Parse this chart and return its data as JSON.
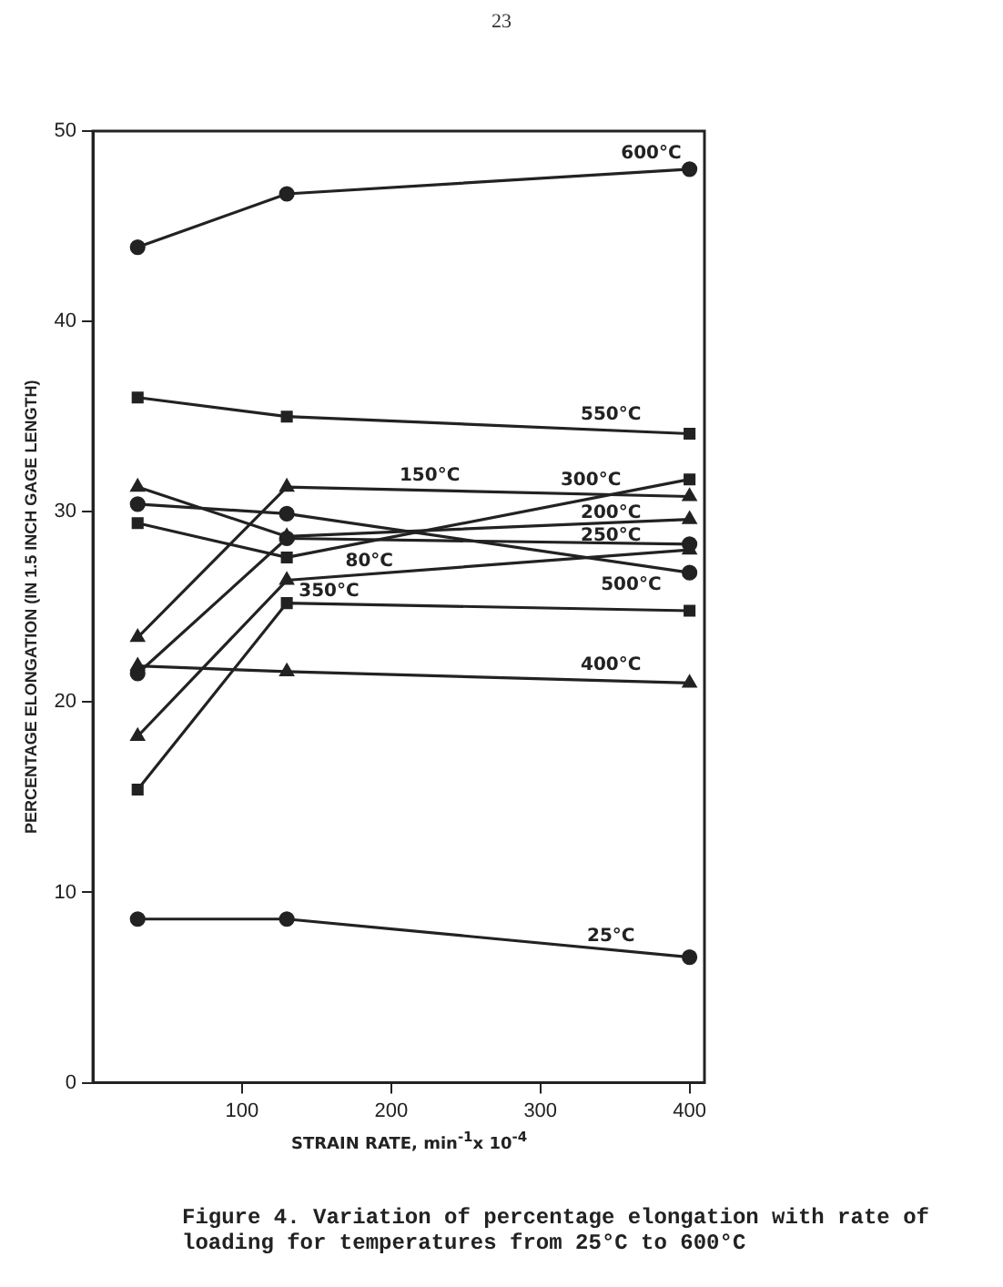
{
  "chart_data": {
    "type": "line",
    "title": "Figure 4.  Variation of percentage elongation with rate of loading for temperatures from 25°C to 600°C",
    "xlabel": "STRAIN RATE, min$^{-1}$x 10$^{-4}$",
    "ylabel": "PERCENTAGE ELONGATION (IN 1.5 INCH GAGE LENGTH)",
    "annotations": [
      "23"
    ],
    "x": [
      30,
      130,
      400
    ],
    "xlim": [
      0,
      410
    ],
    "xticks": [
      100,
      200,
      300,
      400
    ],
    "ylim": [
      0,
      50
    ],
    "yticks": [
      0,
      10,
      20,
      30,
      40,
      50
    ],
    "grid": false,
    "legend": false,
    "line_style": "solid",
    "series": [
      {
        "name": "600°C",
        "color": "#222222",
        "marker": "circle",
        "values": [
          43.9,
          46.7,
          48.0
        ]
      },
      {
        "name": "550°C",
        "color": "#222222",
        "marker": "square",
        "values": [
          36.0,
          35.0,
          34.1
        ]
      },
      {
        "name": "300°C",
        "color": "#222222",
        "marker": "square",
        "values": [
          29.4,
          27.6,
          31.7
        ]
      },
      {
        "name": "150°C",
        "color": "#222222",
        "marker": "triangle",
        "values": [
          23.4,
          31.3,
          30.8
        ]
      },
      {
        "name": "200°C",
        "color": "#222222",
        "marker": "triangle",
        "values": [
          31.3,
          28.7,
          29.6
        ]
      },
      {
        "name": "250°C",
        "color": "#222222",
        "marker": "circle",
        "values": [
          21.5,
          28.6,
          28.3
        ]
      },
      {
        "name": "500°C",
        "color": "#222222",
        "marker": "circle",
        "values": [
          30.4,
          29.9,
          26.8
        ]
      },
      {
        "name": "80°C",
        "color": "#222222",
        "marker": "triangle",
        "values": [
          18.2,
          26.4,
          28.0
        ]
      },
      {
        "name": "350°C",
        "color": "#222222",
        "marker": "square",
        "values": [
          15.4,
          25.2,
          24.8
        ]
      },
      {
        "name": "400°C",
        "color": "#222222",
        "marker": "triangle",
        "values": [
          21.9,
          21.6,
          21.0
        ]
      },
      {
        "name": "25°C",
        "color": "#222222",
        "marker": "circle",
        "values": [
          8.6,
          8.6,
          6.6
        ]
      }
    ]
  }
}
